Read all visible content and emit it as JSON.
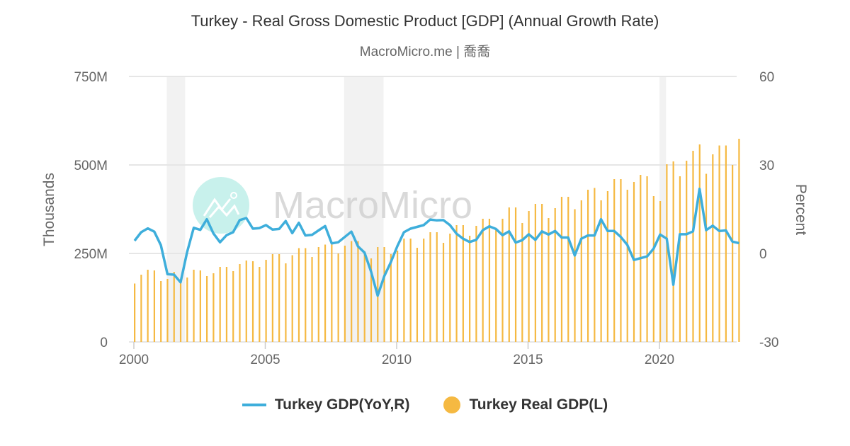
{
  "header": {
    "title": "Turkey - Real Gross Domestic Product [GDP] (Annual Growth Rate)",
    "subtitle": "MacroMicro.me | 喬喬"
  },
  "watermark": {
    "text": "MacroMicro"
  },
  "colors": {
    "line": "#3eaedb",
    "bar": "#f5b942",
    "recession": "#f2f2f2",
    "grid": "#e6e6e6",
    "watermark_logo": "#c8f1ec"
  },
  "legend": [
    {
      "label": "Turkey GDP(YoY,R)",
      "type": "line",
      "color": "#3eaedb"
    },
    {
      "label": "Turkey Real GDP(L)",
      "type": "bar",
      "color": "#f5b942"
    }
  ],
  "chart_data": {
    "type": "bar+line",
    "title": "Turkey - Real Gross Domestic Product [GDP] (Annual Growth Rate)",
    "subtitle": "MacroMicro.me | 喬喬",
    "xlabel": "",
    "x_ticks": [
      "2000",
      "2005",
      "2010",
      "2015",
      "2020"
    ],
    "left_axis": {
      "title": "Thousands",
      "ticks": [
        "0",
        "250M",
        "500M",
        "750M"
      ],
      "range": [
        0,
        750000000
      ]
    },
    "right_axis": {
      "title": "Percent",
      "ticks": [
        "-30",
        "0",
        "30",
        "60"
      ],
      "range": [
        -30,
        60
      ]
    },
    "grid": true,
    "legend_position": "bottom",
    "recession_bands": [
      [
        2001.25,
        2001.95
      ],
      [
        2008.0,
        2009.5
      ],
      [
        2020.0,
        2020.25
      ]
    ],
    "x_start": 2000.0,
    "x_step_years": 0.25,
    "series": [
      {
        "name": "Turkey Real GDP(L)",
        "axis": "left",
        "type": "bar",
        "unit": "Thousands",
        "values": [
          165,
          190,
          204,
          202,
          172,
          178,
          198,
          168,
          182,
          204,
          202,
          186,
          194,
          212,
          212,
          200,
          220,
          230,
          228,
          212,
          232,
          248,
          248,
          222,
          245,
          265,
          265,
          240,
          268,
          275,
          275,
          250,
          272,
          285,
          285,
          256,
          236,
          268,
          268,
          248,
          258,
          292,
          292,
          266,
          292,
          310,
          310,
          280,
          306,
          330,
          330,
          300,
          328,
          348,
          348,
          320,
          348,
          380,
          380,
          336,
          370,
          390,
          390,
          350,
          378,
          410,
          410,
          375,
          400,
          430,
          435,
          400,
          426,
          460,
          460,
          430,
          452,
          472,
          468,
          412,
          398,
          502,
          510,
          468,
          512,
          540,
          558,
          475,
          530,
          555,
          555,
          500,
          574
        ]
      },
      {
        "name": "Turkey GDP(YoY,R)",
        "axis": "right",
        "type": "line",
        "unit": "Percent",
        "values": [
          4.3,
          7.2,
          8.5,
          7.4,
          2.8,
          -7.0,
          -7.2,
          -9.8,
          0.5,
          8.7,
          8.0,
          11.6,
          6.8,
          3.8,
          6.2,
          7.2,
          11.3,
          12.0,
          8.4,
          8.6,
          9.6,
          8.1,
          8.3,
          11.0,
          6.9,
          10.4,
          6.1,
          6.3,
          7.8,
          9.3,
          3.4,
          3.8,
          5.6,
          7.4,
          2.4,
          0.3,
          -6.2,
          -14.3,
          -7.7,
          -3.0,
          2.5,
          7.2,
          8.4,
          9.0,
          9.6,
          11.5,
          11.2,
          11.3,
          9.6,
          6.7,
          5.0,
          3.9,
          4.6,
          7.9,
          9.2,
          8.3,
          6.2,
          7.5,
          3.7,
          4.5,
          6.5,
          4.6,
          7.5,
          6.4,
          7.6,
          5.4,
          5.4,
          -0.7,
          5.0,
          6.1,
          6.1,
          11.6,
          7.6,
          7.6,
          5.6,
          2.9,
          -2.2,
          -1.6,
          -1.0,
          1.6,
          6.4,
          5.0,
          -10.6,
          6.5,
          6.5,
          7.5,
          21.9,
          7.9,
          9.4,
          7.6,
          7.8,
          4.0,
          3.5
        ]
      }
    ]
  }
}
